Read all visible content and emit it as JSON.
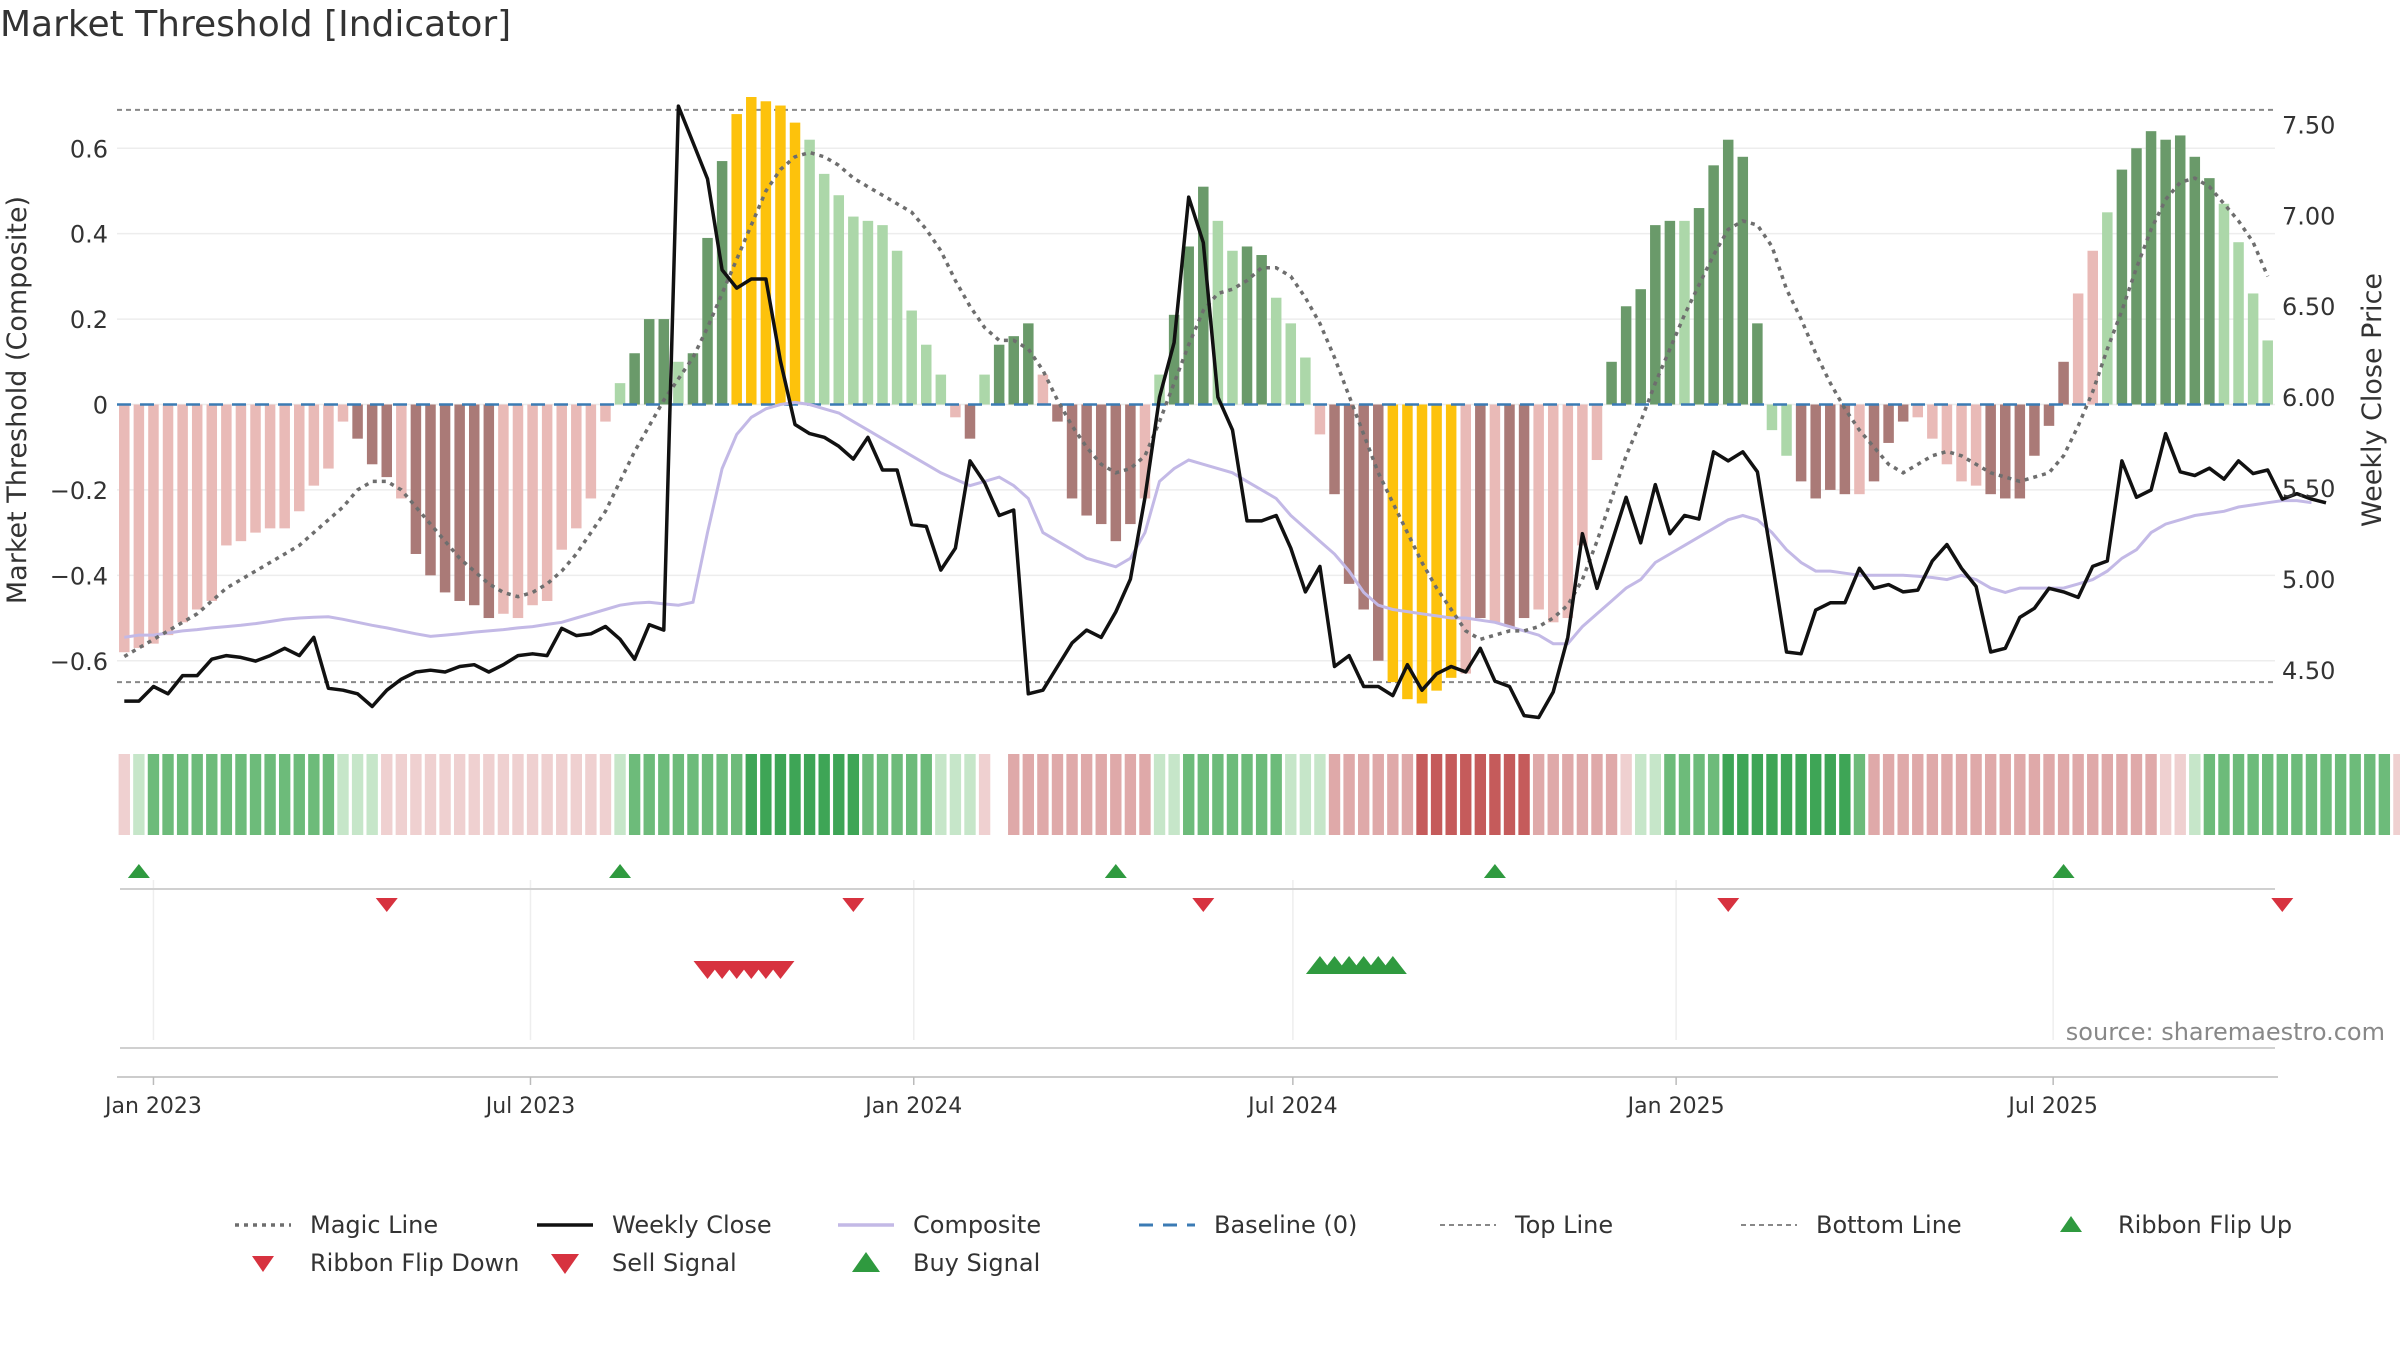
{
  "page": {
    "title": "Market Threshold [Indicator]"
  },
  "colors": {
    "bar_light_green": "#acd7a9",
    "bar_dark_green": "#6a9a6a",
    "bar_light_red": "#e9bab7",
    "bar_dark_red": "#aa7a77",
    "bar_gold": "#fdc20c",
    "weekly_close": "#111111",
    "composite": "#c3b9e6",
    "magic_line": "#6e6e6e",
    "baseline": "#3b7bb4",
    "threshold_lines": "#888888",
    "marker_green": "#2f9a3f",
    "marker_red": "#d7323f",
    "ribbon_green_strong": "#3ea556",
    "ribbon_green_light": "#c6e6c9",
    "ribbon_red_strong": "#c55b5b",
    "ribbon_red_light": "#f0d2d2"
  },
  "chart_data": {
    "type": "bar",
    "title": "Market Threshold [Indicator]",
    "ylabel": "Market Threshold (Composite)",
    "y2label": "Weekly Close Price",
    "ylim": [
      -0.72,
      0.72
    ],
    "y2lim": [
      4.27,
      7.65
    ],
    "y_ticks": [
      -0.6,
      -0.4,
      -0.2,
      0,
      0.2,
      0.4,
      0.6
    ],
    "y_tick_labels": [
      "−0.6",
      "−0.4",
      "−0.2",
      "0",
      "0.2",
      "0.4",
      "0.6"
    ],
    "y2_ticks": [
      4.5,
      5.0,
      5.5,
      6.0,
      6.5,
      7.0,
      7.5
    ],
    "y2_tick_labels": [
      "4.50",
      "5.00",
      "5.50",
      "6.00",
      "6.50",
      "7.00",
      "7.50"
    ],
    "x_ticks": [
      "2023-01-01",
      "2023-07-01",
      "2024-01-01",
      "2024-07-01",
      "2025-01-01",
      "2025-07-01"
    ],
    "x_tick_labels": [
      "Jan 2023",
      "Jul 2023",
      "Jan 2024",
      "Jul 2024",
      "Jan 2025",
      "Jul 2025"
    ],
    "start_date": "2022-12-18",
    "week_step_days": 7,
    "top_line": 0.69,
    "bottom_line": -0.65,
    "grid": true,
    "legend_position": "bottom",
    "annotation": "source: sharemaestro.com",
    "series": [
      {
        "name": "Magic Line",
        "style": "dotted"
      },
      {
        "name": "Weekly Close",
        "style": "solid"
      },
      {
        "name": "Composite",
        "style": "solid"
      },
      {
        "name": "Baseline (0)",
        "style": "dashed"
      },
      {
        "name": "Top Line",
        "style": "dashed-thin"
      },
      {
        "name": "Bottom Line",
        "style": "dashed-thin"
      },
      {
        "name": "Ribbon Flip Up",
        "style": "marker-up-green"
      },
      {
        "name": "Ribbon Flip Down",
        "style": "marker-down-red"
      },
      {
        "name": "Sell Signal",
        "style": "marker-down-red-large"
      },
      {
        "name": "Buy Signal",
        "style": "marker-up-green-large"
      }
    ],
    "threshold_bars": [
      -0.58,
      -0.57,
      -0.56,
      -0.54,
      -0.51,
      -0.48,
      -0.46,
      -0.33,
      -0.32,
      -0.3,
      -0.29,
      -0.29,
      -0.25,
      -0.19,
      -0.15,
      -0.04,
      -0.08,
      -0.14,
      -0.17,
      -0.22,
      -0.35,
      -0.4,
      -0.44,
      -0.46,
      -0.47,
      -0.5,
      -0.49,
      -0.5,
      -0.47,
      -0.46,
      -0.34,
      -0.29,
      -0.22,
      -0.04,
      0.05,
      0.12,
      0.2,
      0.2,
      0.1,
      0.12,
      0.39,
      0.57,
      0.68,
      0.72,
      0.71,
      0.7,
      0.66,
      0.62,
      0.54,
      0.49,
      0.44,
      0.43,
      0.42,
      0.36,
      0.22,
      0.14,
      0.07,
      -0.03,
      -0.08,
      0.07,
      0.14,
      0.16,
      0.19,
      0.07,
      -0.04,
      -0.22,
      -0.26,
      -0.28,
      -0.32,
      -0.28,
      -0.22,
      0.07,
      0.21,
      0.37,
      0.51,
      0.43,
      0.36,
      0.37,
      0.35,
      0.25,
      0.19,
      0.11,
      -0.07,
      -0.21,
      -0.42,
      -0.48,
      -0.6,
      -0.65,
      -0.69,
      -0.7,
      -0.67,
      -0.64,
      -0.63,
      -0.5,
      -0.51,
      -0.52,
      -0.5,
      -0.48,
      -0.51,
      -0.5,
      -0.33,
      -0.13,
      0.1,
      0.23,
      0.27,
      0.42,
      0.43,
      0.43,
      0.46,
      0.56,
      0.62,
      0.58,
      0.19,
      -0.06,
      -0.12,
      -0.18,
      -0.22,
      -0.2,
      -0.21,
      -0.21,
      -0.18,
      -0.09,
      -0.04,
      -0.03,
      -0.08,
      -0.14,
      -0.18,
      -0.19,
      -0.21,
      -0.22,
      -0.22,
      -0.12,
      -0.05,
      0.1,
      0.26,
      0.36,
      0.45,
      0.55,
      0.6,
      0.64,
      0.62,
      0.63,
      0.58,
      0.53,
      0.47,
      0.38,
      0.26,
      0.15
    ],
    "bar_colors": [
      "lr",
      "lr",
      "lr",
      "lr",
      "lr",
      "lr",
      "lr",
      "lr",
      "lr",
      "lr",
      "lr",
      "lr",
      "lr",
      "lr",
      "lr",
      "lr",
      "dr",
      "dr",
      "dr",
      "lr",
      "dr",
      "dr",
      "dr",
      "dr",
      "dr",
      "dr",
      "lr",
      "lr",
      "lr",
      "lr",
      "lr",
      "lr",
      "lr",
      "lr",
      "lg",
      "dg",
      "dg",
      "dg",
      "lg",
      "dg",
      "dg",
      "dg",
      "go",
      "go",
      "go",
      "go",
      "go",
      "lg",
      "lg",
      "lg",
      "lg",
      "lg",
      "lg",
      "lg",
      "lg",
      "lg",
      "lg",
      "lr",
      "dr",
      "lg",
      "dg",
      "dg",
      "dg",
      "lr",
      "dr",
      "dr",
      "dr",
      "dr",
      "dr",
      "dr",
      "lr",
      "lg",
      "dg",
      "dg",
      "dg",
      "lg",
      "lg",
      "dg",
      "dg",
      "lg",
      "lg",
      "lg",
      "lr",
      "dr",
      "dr",
      "dr",
      "dr",
      "go",
      "go",
      "go",
      "go",
      "go",
      "lr",
      "dr",
      "lr",
      "dr",
      "dr",
      "lr",
      "lr",
      "lr",
      "lr",
      "lr",
      "dg",
      "dg",
      "dg",
      "dg",
      "dg",
      "lg",
      "dg",
      "dg",
      "dg",
      "dg",
      "dg",
      "lg",
      "lg",
      "dr",
      "dr",
      "dr",
      "dr",
      "lr",
      "dr",
      "dr",
      "dr",
      "lr",
      "lr",
      "lr",
      "lr",
      "lr",
      "dr",
      "dr",
      "dr",
      "dr",
      "dr",
      "dr",
      "lr",
      "lr",
      "lg",
      "dg",
      "dg",
      "dg",
      "dg",
      "dg",
      "dg",
      "dg",
      "lg",
      "lg",
      "lg",
      "lg",
      "lg",
      "lg",
      "lg"
    ],
    "weekly_close": [
      4.33,
      4.33,
      4.41,
      4.37,
      4.47,
      4.47,
      4.56,
      4.58,
      4.57,
      4.55,
      4.58,
      4.62,
      4.58,
      4.68,
      4.4,
      4.39,
      4.37,
      4.3,
      4.39,
      4.45,
      4.49,
      4.5,
      4.49,
      4.52,
      4.53,
      4.49,
      4.53,
      4.58,
      4.59,
      4.58,
      4.73,
      4.69,
      4.7,
      4.74,
      4.67,
      4.56,
      4.75,
      4.72,
      7.6,
      7.4,
      7.2,
      6.7,
      6.6,
      6.65,
      6.65,
      6.2,
      5.85,
      5.8,
      5.78,
      5.73,
      5.66,
      5.78,
      5.6,
      5.6,
      5.3,
      5.29,
      5.05,
      5.17,
      5.65,
      5.53,
      5.35,
      5.38,
      4.37,
      4.39,
      4.52,
      4.65,
      4.72,
      4.68,
      4.82,
      5.0,
      5.45,
      6.0,
      6.3,
      7.1,
      6.85,
      6.0,
      5.82,
      5.32,
      5.32,
      5.35,
      5.17,
      4.93,
      5.07,
      4.52,
      4.58,
      4.41,
      4.41,
      4.36,
      4.53,
      4.39,
      4.48,
      4.52,
      4.49,
      4.62,
      4.44,
      4.41,
      4.25,
      4.24,
      4.38,
      4.68,
      5.25,
      4.95,
      5.2,
      5.45,
      5.2,
      5.52,
      5.25,
      5.35,
      5.33,
      5.7,
      5.65,
      5.7,
      5.59,
      5.1,
      4.6,
      4.59,
      4.83,
      4.87,
      4.87,
      5.06,
      4.95,
      4.97,
      4.93,
      4.94,
      5.1,
      5.19,
      5.06,
      4.96,
      4.6,
      4.62,
      4.79,
      4.84,
      4.95,
      4.93,
      4.9,
      5.07,
      5.1,
      5.65,
      5.45,
      5.49,
      5.8,
      5.59,
      5.57,
      5.61,
      5.55,
      5.65,
      5.58,
      5.6,
      5.44,
      5.47,
      5.44,
      5.42
    ],
    "composite": [
      -0.545,
      -0.54,
      -0.54,
      -0.535,
      -0.53,
      -0.527,
      -0.523,
      -0.52,
      -0.517,
      -0.513,
      -0.508,
      -0.503,
      -0.5,
      -0.498,
      -0.497,
      -0.503,
      -0.51,
      -0.517,
      -0.523,
      -0.53,
      -0.537,
      -0.543,
      -0.54,
      -0.537,
      -0.533,
      -0.53,
      -0.527,
      -0.523,
      -0.52,
      -0.515,
      -0.51,
      -0.5,
      -0.49,
      -0.48,
      -0.47,
      -0.465,
      -0.463,
      -0.467,
      -0.47,
      -0.463,
      -0.3,
      -0.15,
      -0.07,
      -0.03,
      -0.01,
      0.0,
      0.005,
      0.0,
      -0.01,
      -0.02,
      -0.04,
      -0.06,
      -0.08,
      -0.1,
      -0.12,
      -0.14,
      -0.16,
      -0.175,
      -0.19,
      -0.18,
      -0.17,
      -0.19,
      -0.22,
      -0.3,
      -0.32,
      -0.34,
      -0.36,
      -0.37,
      -0.38,
      -0.36,
      -0.3,
      -0.18,
      -0.15,
      -0.13,
      -0.14,
      -0.15,
      -0.16,
      -0.18,
      -0.2,
      -0.22,
      -0.26,
      -0.29,
      -0.32,
      -0.35,
      -0.39,
      -0.44,
      -0.47,
      -0.48,
      -0.485,
      -0.49,
      -0.495,
      -0.5,
      -0.5,
      -0.505,
      -0.51,
      -0.52,
      -0.53,
      -0.54,
      -0.56,
      -0.56,
      -0.52,
      -0.49,
      -0.46,
      -0.43,
      -0.41,
      -0.37,
      -0.35,
      -0.33,
      -0.31,
      -0.29,
      -0.27,
      -0.26,
      -0.27,
      -0.3,
      -0.34,
      -0.37,
      -0.39,
      -0.39,
      -0.395,
      -0.4,
      -0.4,
      -0.4,
      -0.4,
      -0.402,
      -0.405,
      -0.41,
      -0.4,
      -0.41,
      -0.43,
      -0.44,
      -0.43,
      -0.43,
      -0.43,
      -0.43,
      -0.42,
      -0.41,
      -0.39,
      -0.36,
      -0.34,
      -0.3,
      -0.28,
      -0.27,
      -0.26,
      -0.255,
      -0.25,
      -0.24,
      -0.235,
      -0.23,
      -0.225,
      -0.225,
      -0.23
    ],
    "magic_line": [
      -0.59,
      -0.57,
      -0.55,
      -0.53,
      -0.51,
      -0.49,
      -0.46,
      -0.43,
      -0.41,
      -0.39,
      -0.37,
      -0.35,
      -0.33,
      -0.3,
      -0.27,
      -0.24,
      -0.2,
      -0.18,
      -0.18,
      -0.2,
      -0.24,
      -0.28,
      -0.32,
      -0.36,
      -0.39,
      -0.42,
      -0.44,
      -0.45,
      -0.44,
      -0.42,
      -0.39,
      -0.35,
      -0.3,
      -0.25,
      -0.18,
      -0.11,
      -0.05,
      0.01,
      0.06,
      0.11,
      0.18,
      0.26,
      0.34,
      0.42,
      0.5,
      0.55,
      0.58,
      0.59,
      0.58,
      0.56,
      0.53,
      0.51,
      0.49,
      0.47,
      0.45,
      0.41,
      0.36,
      0.29,
      0.23,
      0.18,
      0.15,
      0.15,
      0.13,
      0.08,
      0.01,
      -0.05,
      -0.1,
      -0.14,
      -0.16,
      -0.15,
      -0.12,
      -0.04,
      0.05,
      0.14,
      0.22,
      0.26,
      0.27,
      0.29,
      0.32,
      0.32,
      0.3,
      0.25,
      0.19,
      0.11,
      0.02,
      -0.07,
      -0.16,
      -0.23,
      -0.3,
      -0.37,
      -0.43,
      -0.48,
      -0.53,
      -0.55,
      -0.54,
      -0.53,
      -0.53,
      -0.52,
      -0.5,
      -0.47,
      -0.41,
      -0.32,
      -0.22,
      -0.12,
      -0.04,
      0.05,
      0.13,
      0.21,
      0.28,
      0.35,
      0.41,
      0.43,
      0.42,
      0.37,
      0.27,
      0.2,
      0.12,
      0.05,
      -0.01,
      -0.06,
      -0.1,
      -0.14,
      -0.16,
      -0.14,
      -0.12,
      -0.11,
      -0.12,
      -0.14,
      -0.16,
      -0.17,
      -0.18,
      -0.17,
      -0.16,
      -0.12,
      -0.05,
      0.03,
      0.13,
      0.22,
      0.32,
      0.41,
      0.48,
      0.52,
      0.53,
      0.51,
      0.47,
      0.43,
      0.38,
      0.3
    ],
    "ribbon": [
      -1,
      1,
      2,
      2,
      2,
      2,
      2,
      2,
      2,
      2,
      2,
      2,
      2,
      2,
      2,
      1,
      1,
      1,
      -1,
      -1,
      -1,
      -1,
      -1,
      -1,
      -1,
      -1,
      -1,
      -1,
      -1,
      -1,
      -1,
      -1,
      -1,
      -1,
      1,
      2,
      2,
      2,
      2,
      2,
      2,
      2,
      2,
      3,
      3,
      3,
      3,
      3,
      3,
      3,
      3,
      2,
      2,
      2,
      2,
      2,
      1,
      1,
      1,
      -1,
      -2,
      -2,
      -2,
      -2,
      -2,
      -2,
      -2,
      -2,
      -2,
      -2,
      -2,
      1,
      1,
      2,
      2,
      2,
      2,
      2,
      2,
      2,
      1,
      1,
      1,
      -2,
      -2,
      -2,
      -2,
      -2,
      -2,
      -3,
      -3,
      -3,
      -3,
      -3,
      -3,
      -3,
      -3,
      -2,
      -2,
      -2,
      -2,
      -2,
      -2,
      -1,
      1,
      1,
      2,
      2,
      2,
      2,
      3,
      3,
      3,
      3,
      3,
      3,
      3,
      3,
      3,
      2,
      -2,
      -2,
      -2,
      -2,
      -2,
      -2,
      -2,
      -2,
      -2,
      -2,
      -2,
      -2,
      -2,
      -2,
      -2,
      -2,
      -2,
      -2,
      -2,
      -2,
      -1,
      -1,
      1,
      2,
      2,
      2,
      2,
      2,
      2,
      2,
      2,
      2,
      2,
      2,
      2,
      2,
      -1
    ],
    "ribbon_gap_index": 60,
    "ribbon_flip_up": [
      1,
      34,
      68,
      94,
      133
    ],
    "ribbon_flip_down": [
      18,
      50,
      74,
      110,
      148
    ],
    "sell_signal": [
      40,
      41,
      42,
      43,
      44,
      45
    ],
    "buy_signal": [
      82,
      83,
      84,
      85,
      86,
      87
    ]
  }
}
